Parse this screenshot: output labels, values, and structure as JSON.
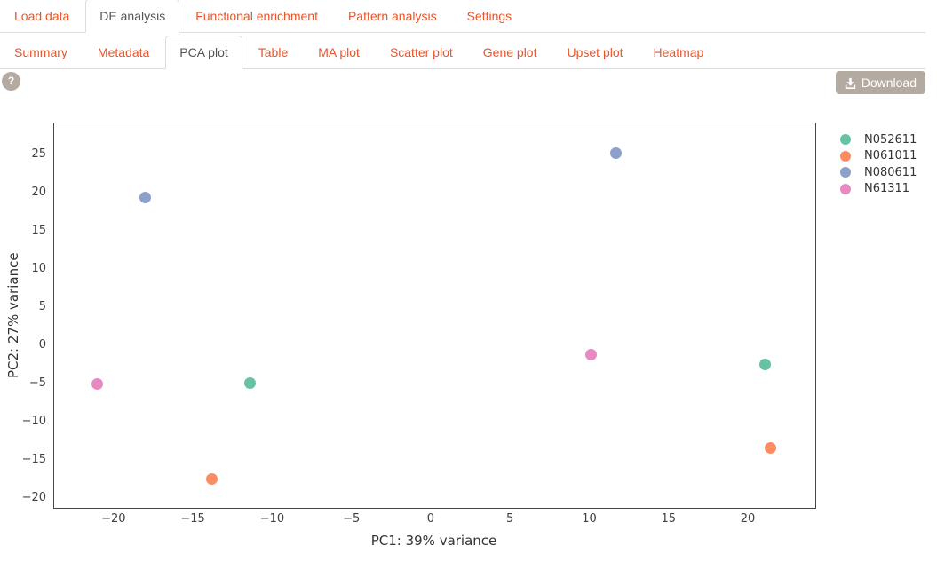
{
  "nav_primary": {
    "tabs": [
      {
        "label": "Load data",
        "active": false
      },
      {
        "label": "DE analysis",
        "active": true
      },
      {
        "label": "Functional enrichment",
        "active": false
      },
      {
        "label": "Pattern analysis",
        "active": false
      },
      {
        "label": "Settings",
        "active": false
      }
    ]
  },
  "nav_secondary": {
    "tabs": [
      {
        "label": "Summary",
        "active": false
      },
      {
        "label": "Metadata",
        "active": false
      },
      {
        "label": "PCA plot",
        "active": true
      },
      {
        "label": "Table",
        "active": false
      },
      {
        "label": "MA plot",
        "active": false
      },
      {
        "label": "Scatter plot",
        "active": false
      },
      {
        "label": "Gene plot",
        "active": false
      },
      {
        "label": "Upset plot",
        "active": false
      },
      {
        "label": "Heatmap",
        "active": false
      }
    ]
  },
  "toolbar": {
    "help_label": "?",
    "download_label": "Download",
    "button_color": "#b3aaa2"
  },
  "colors": {
    "accent_orange": "#e8542c",
    "active_tab_text": "#555555",
    "row_border": "#dddddd",
    "plot_border": "#464646",
    "tick_text": "#3d4045"
  },
  "chart_data": {
    "type": "scatter",
    "title": "",
    "xlabel": "PC1: 39% variance",
    "ylabel": "PC2: 27% variance",
    "xlim": [
      -23.8,
      24.2
    ],
    "ylim": [
      -21.2,
      29.2
    ],
    "x_ticks": [
      -20,
      -15,
      -10,
      -5,
      0,
      5,
      10,
      15,
      20
    ],
    "y_ticks": [
      25,
      20,
      15,
      10,
      5,
      0,
      -5,
      -10,
      -15,
      -20
    ],
    "grid": false,
    "legend_position": "right",
    "series": [
      {
        "name": "N052611",
        "color": "#66c2a5",
        "points": [
          [
            -11.4,
            -5.0
          ],
          [
            21.1,
            -2.5
          ]
        ]
      },
      {
        "name": "N061011",
        "color": "#fc8d62",
        "points": [
          [
            -13.8,
            -17.5
          ],
          [
            21.4,
            -13.5
          ]
        ]
      },
      {
        "name": "N080611",
        "color": "#8da0cb",
        "points": [
          [
            -18.0,
            19.4
          ],
          [
            11.7,
            25.2
          ]
        ]
      },
      {
        "name": "N61311",
        "color": "#e78ac3",
        "points": [
          [
            -21.0,
            -5.1
          ],
          [
            10.1,
            -1.2
          ]
        ]
      }
    ]
  }
}
